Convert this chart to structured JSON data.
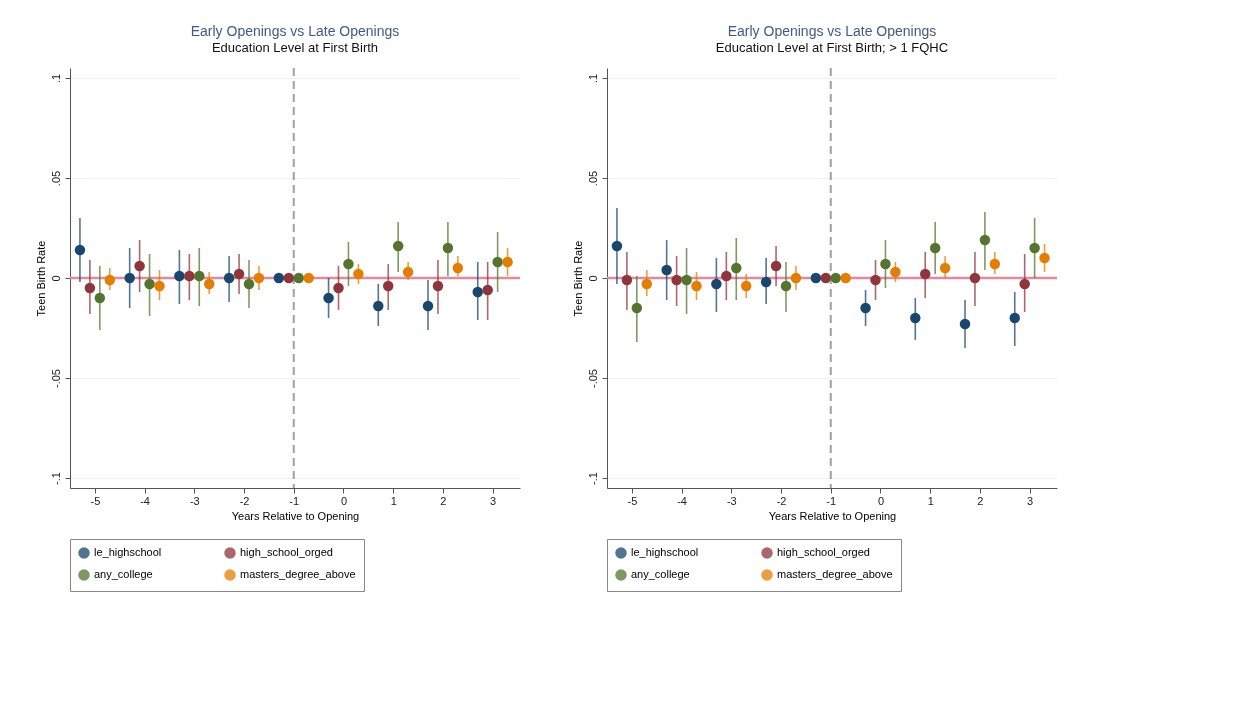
{
  "chart_data": [
    {
      "type": "scatter",
      "title": "Early Openings vs Late Openings",
      "subtitle": "Education Level at First Birth",
      "xlabel": "Years Relative to Opening",
      "ylabel": "Teen Birth Rate",
      "xlim": [
        -5.5,
        3.55
      ],
      "xticks": [
        -5,
        -4,
        -3,
        -2,
        -1,
        0,
        1,
        2,
        3
      ],
      "ylim": [
        -0.105,
        0.105
      ],
      "yticks": [
        {
          "value": -0.1,
          "label": "-.1"
        },
        {
          "value": -0.05,
          "label": "-.05"
        },
        0,
        {
          "value": 0.05,
          "label": ".05"
        },
        {
          "value": 0.1,
          "label": ".1"
        }
      ],
      "grid": "y",
      "legend": "bottom",
      "marker": "circle",
      "ref_lines": [
        {
          "axis": "y",
          "value": 0,
          "color": "#e0899f",
          "line_style": "solid"
        },
        {
          "axis": "x",
          "value": -1,
          "color": "#a0a0a0",
          "line_style": "dashed"
        }
      ],
      "series": [
        {
          "name": "le_highschool",
          "color": "#1a476f",
          "x": [
            -5.3,
            -4.3,
            -3.3,
            -2.3,
            -1.3,
            -0.3,
            0.7,
            1.7,
            2.7
          ],
          "values": [
            0.014,
            0.0,
            0.001,
            0.0,
            0.0,
            -0.01,
            -0.014,
            -0.014,
            -0.007
          ],
          "errors": [
            [
              -0.002,
              0.03
            ],
            [
              -0.015,
              0.015
            ],
            [
              -0.013,
              0.014
            ],
            [
              -0.012,
              0.011
            ],
            null,
            [
              -0.02,
              0.0
            ],
            [
              -0.024,
              -0.003
            ],
            [
              -0.026,
              -0.001
            ],
            [
              -0.021,
              0.008
            ]
          ]
        },
        {
          "name": "high_school_orged",
          "color": "#90353b",
          "x": [
            -5.1,
            -4.1,
            -3.1,
            -2.1,
            -1.1,
            -0.1,
            0.9,
            1.9,
            2.9
          ],
          "values": [
            -0.005,
            0.006,
            0.001,
            0.002,
            0.0,
            -0.005,
            -0.004,
            -0.004,
            -0.006
          ],
          "errors": [
            [
              -0.018,
              0.009
            ],
            [
              -0.007,
              0.019
            ],
            [
              -0.011,
              0.012
            ],
            [
              -0.008,
              0.012
            ],
            null,
            [
              -0.016,
              0.006
            ],
            [
              -0.016,
              0.007
            ],
            [
              -0.018,
              0.009
            ],
            [
              -0.021,
              0.008
            ]
          ]
        },
        {
          "name": "any_college",
          "color": "#55752f",
          "x": [
            -4.9,
            -3.9,
            -2.9,
            -1.9,
            -0.9,
            0.1,
            1.1,
            2.1,
            3.1
          ],
          "values": [
            -0.01,
            -0.003,
            0.001,
            -0.003,
            0.0,
            0.007,
            0.016,
            0.015,
            0.008
          ],
          "errors": [
            [
              -0.026,
              0.006
            ],
            [
              -0.019,
              0.012
            ],
            [
              -0.014,
              0.015
            ],
            [
              -0.015,
              0.009
            ],
            null,
            [
              -0.004,
              0.018
            ],
            [
              0.003,
              0.028
            ],
            [
              0.001,
              0.028
            ],
            [
              -0.007,
              0.023
            ]
          ]
        },
        {
          "name": "masters_degree_above",
          "color": "#e37e00",
          "x": [
            -4.7,
            -3.7,
            -2.7,
            -1.7,
            -0.7,
            0.3,
            1.3,
            2.3,
            3.3
          ],
          "values": [
            -0.001,
            -0.004,
            -0.003,
            0.0,
            0.0,
            0.002,
            0.003,
            0.005,
            0.008
          ],
          "errors": [
            [
              -0.006,
              0.005
            ],
            [
              -0.011,
              0.004
            ],
            [
              -0.008,
              0.003
            ],
            [
              -0.006,
              0.006
            ],
            null,
            [
              -0.003,
              0.007
            ],
            [
              -0.001,
              0.008
            ],
            [
              0.001,
              0.011
            ],
            [
              0.001,
              0.015
            ]
          ]
        }
      ]
    },
    {
      "type": "scatter",
      "title": "Early Openings vs Late Openings",
      "subtitle": "Education Level at First Birth; > 1 FQHC",
      "xlabel": "Years Relative to Opening",
      "ylabel": "Teen Birth Rate",
      "xlim": [
        -5.5,
        3.55
      ],
      "xticks": [
        -5,
        -4,
        -3,
        -2,
        -1,
        0,
        1,
        2,
        3
      ],
      "ylim": [
        -0.105,
        0.105
      ],
      "yticks": [
        {
          "value": -0.1,
          "label": "-.1"
        },
        {
          "value": -0.05,
          "label": "-.05"
        },
        0,
        {
          "value": 0.05,
          "label": ".05"
        },
        {
          "value": 0.1,
          "label": ".1"
        }
      ],
      "grid": "y",
      "legend": "bottom",
      "marker": "circle",
      "ref_lines": [
        {
          "axis": "y",
          "value": 0,
          "color": "#e0899f",
          "line_style": "solid"
        },
        {
          "axis": "x",
          "value": -1,
          "color": "#a0a0a0",
          "line_style": "dashed"
        }
      ],
      "series": [
        {
          "name": "le_highschool",
          "color": "#1a476f",
          "x": [
            -5.3,
            -4.3,
            -3.3,
            -2.3,
            -1.3,
            -0.3,
            0.7,
            1.7,
            2.7
          ],
          "values": [
            0.016,
            0.004,
            -0.003,
            -0.002,
            0.0,
            -0.015,
            -0.02,
            -0.023,
            -0.02
          ],
          "errors": [
            [
              -0.003,
              0.035
            ],
            [
              -0.011,
              0.019
            ],
            [
              -0.017,
              0.01
            ],
            [
              -0.013,
              0.01
            ],
            null,
            [
              -0.024,
              -0.006
            ],
            [
              -0.031,
              -0.01
            ],
            [
              -0.035,
              -0.011
            ],
            [
              -0.034,
              -0.007
            ]
          ]
        },
        {
          "name": "high_school_orged",
          "color": "#90353b",
          "x": [
            -5.1,
            -4.1,
            -3.1,
            -2.1,
            -1.1,
            -0.1,
            0.9,
            1.9,
            2.9
          ],
          "values": [
            -0.001,
            -0.001,
            0.001,
            0.006,
            0.0,
            -0.001,
            0.002,
            0.0,
            -0.003
          ],
          "errors": [
            [
              -0.016,
              0.013
            ],
            [
              -0.014,
              0.011
            ],
            [
              -0.011,
              0.013
            ],
            [
              -0.004,
              0.016
            ],
            null,
            [
              -0.011,
              0.009
            ],
            [
              -0.01,
              0.013
            ],
            [
              -0.014,
              0.013
            ],
            [
              -0.017,
              0.012
            ]
          ]
        },
        {
          "name": "any_college",
          "color": "#55752f",
          "x": [
            -4.9,
            -3.9,
            -2.9,
            -1.9,
            -0.9,
            0.1,
            1.1,
            2.1,
            3.1
          ],
          "values": [
            -0.015,
            -0.001,
            0.005,
            -0.004,
            0.0,
            0.007,
            0.015,
            0.019,
            0.015
          ],
          "errors": [
            [
              -0.032,
              0.001
            ],
            [
              -0.018,
              0.015
            ],
            [
              -0.011,
              0.02
            ],
            [
              -0.017,
              0.008
            ],
            null,
            [
              -0.005,
              0.019
            ],
            [
              0.002,
              0.028
            ],
            [
              0.004,
              0.033
            ],
            [
              0.0,
              0.03
            ]
          ]
        },
        {
          "name": "masters_degree_above",
          "color": "#e37e00",
          "x": [
            -4.7,
            -3.7,
            -2.7,
            -1.7,
            -0.7,
            0.3,
            1.3,
            2.3,
            3.3
          ],
          "values": [
            -0.003,
            -0.004,
            -0.004,
            0.0,
            0.0,
            0.003,
            0.005,
            0.007,
            0.01
          ],
          "errors": [
            [
              -0.009,
              0.004
            ],
            [
              -0.011,
              0.003
            ],
            [
              -0.01,
              0.002
            ],
            [
              -0.006,
              0.006
            ],
            null,
            [
              -0.002,
              0.008
            ],
            [
              0.0,
              0.011
            ],
            [
              0.002,
              0.013
            ],
            [
              0.003,
              0.017
            ]
          ]
        }
      ]
    }
  ]
}
